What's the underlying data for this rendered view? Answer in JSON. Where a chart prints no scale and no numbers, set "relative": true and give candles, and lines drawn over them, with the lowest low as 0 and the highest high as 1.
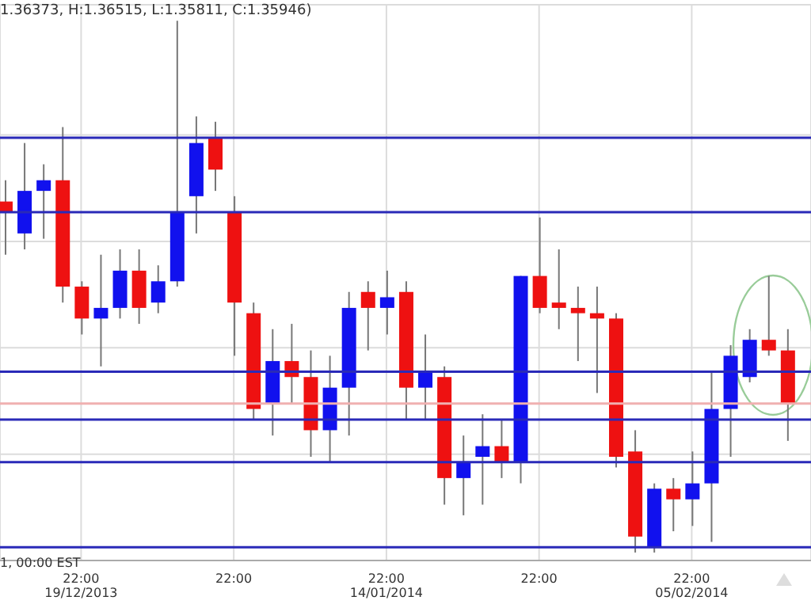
{
  "chart_data": {
    "type": "candlestick",
    "relative": true,
    "categories": [
      null,
      null,
      null,
      null,
      "22:00\n19/12/2013",
      null,
      null,
      null,
      null,
      null,
      null,
      null,
      "22:00",
      null,
      null,
      null,
      null,
      null,
      null,
      null,
      "22:00\n14/01/2014",
      null,
      null,
      null,
      null,
      null,
      null,
      null,
      "22:00",
      null,
      null,
      null,
      null,
      null,
      null,
      null,
      "22:00\n05/02/2014",
      null,
      null,
      null,
      null,
      null
    ],
    "ohlc": [
      [
        0.66,
        0.7,
        0.56,
        0.64
      ],
      [
        0.6,
        0.77,
        0.57,
        0.68
      ],
      [
        0.68,
        0.73,
        0.59,
        0.7
      ],
      [
        0.7,
        0.8,
        0.47,
        0.5
      ],
      [
        0.5,
        0.51,
        0.41,
        0.44
      ],
      [
        0.44,
        0.56,
        0.35,
        0.46
      ],
      [
        0.46,
        0.57,
        0.44,
        0.53
      ],
      [
        0.53,
        0.57,
        0.43,
        0.46
      ],
      [
        0.47,
        0.54,
        0.45,
        0.51
      ],
      [
        0.51,
        1,
        0.5,
        0.64
      ],
      [
        0.67,
        0.82,
        0.6,
        0.77
      ],
      [
        0.78,
        0.81,
        0.68,
        0.72
      ],
      [
        0.64,
        0.67,
        0.37,
        0.47
      ],
      [
        0.45,
        0.47,
        0.25,
        0.27
      ],
      [
        0.28,
        0.42,
        0.22,
        0.36
      ],
      [
        0.36,
        0.43,
        0.28,
        0.33
      ],
      [
        0.33,
        0.38,
        0.18,
        0.23
      ],
      [
        0.23,
        0.37,
        0.17,
        0.31
      ],
      [
        0.31,
        0.49,
        0.22,
        0.46
      ],
      [
        0.49,
        0.51,
        0.38,
        0.46
      ],
      [
        0.46,
        0.53,
        0.41,
        0.48
      ],
      [
        0.49,
        0.51,
        0.25,
        0.31
      ],
      [
        0.31,
        0.41,
        0.25,
        0.34
      ],
      [
        0.33,
        0.35,
        0.09,
        0.14
      ],
      [
        0.14,
        0.22,
        0.07,
        0.17
      ],
      [
        0.18,
        0.26,
        0.09,
        0.2
      ],
      [
        0.2,
        0.25,
        0.14,
        0.17
      ],
      [
        0.17,
        0.52,
        0.13,
        0.52
      ],
      [
        0.52,
        0.63,
        0.45,
        0.46
      ],
      [
        0.47,
        0.57,
        0.42,
        0.46
      ],
      [
        0.46,
        0.5,
        0.36,
        0.45
      ],
      [
        0.45,
        0.5,
        0.3,
        0.44
      ],
      [
        0.44,
        0.45,
        0.16,
        0.18
      ],
      [
        0.19,
        0.23,
        0,
        0.03
      ],
      [
        0.01,
        0.13,
        0,
        0.12
      ],
      [
        0.12,
        0.14,
        0.04,
        0.1
      ],
      [
        0.1,
        0.19,
        0.05,
        0.13
      ],
      [
        0.13,
        0.34,
        0.02,
        0.27
      ],
      [
        0.27,
        0.39,
        0.18,
        0.37
      ],
      [
        0.33,
        0.42,
        0.32,
        0.4
      ],
      [
        0.4,
        0.52,
        0.37,
        0.38
      ],
      [
        0.38,
        0.42,
        0.21,
        0.28
      ]
    ],
    "colors": [
      "#ee1111",
      "#1111ee",
      "#1111ee",
      "#ee1111",
      "#ee1111",
      "#1111ee",
      "#1111ee",
      "#ee1111",
      "#1111ee",
      "#1111ee",
      "#1111ee",
      "#ee1111",
      "#ee1111",
      "#ee1111",
      "#1111ee",
      "#ee1111",
      "#ee1111",
      "#1111ee",
      "#1111ee",
      "#ee1111",
      "#1111ee",
      "#ee1111",
      "#1111ee",
      "#ee1111",
      "#1111ee",
      "#1111ee",
      "#ee1111",
      "#1111ee",
      "#ee1111",
      "#ee1111",
      "#ee1111",
      "#ee1111",
      "#ee1111",
      "#ee1111",
      "#1111ee",
      "#ee1111",
      "#1111ee",
      "#1111ee",
      "#1111ee",
      "#1111ee",
      "#ee1111",
      "#ee1111"
    ],
    "ref_lines": [
      {
        "axis": "y",
        "value": 0.78,
        "color": "#2a2ab8"
      },
      {
        "axis": "y",
        "value": 0.64,
        "color": "#2a2ab8"
      },
      {
        "axis": "y",
        "value": 0.34,
        "color": "#2a2ab8"
      },
      {
        "axis": "y",
        "value": 0.28,
        "color": "#f0b0b0"
      },
      {
        "axis": "y",
        "value": 0.25,
        "color": "#2a2ab8"
      },
      {
        "axis": "y",
        "value": 0.17,
        "color": "#2a2ab8"
      },
      {
        "axis": "y",
        "value": 0.01,
        "color": "#2a2ab8"
      }
    ],
    "grid": true,
    "annotations": [
      "1.36373, H:1.36515, L:1.35811, C:1.35946)",
      "1, 00:00 EST"
    ]
  }
}
